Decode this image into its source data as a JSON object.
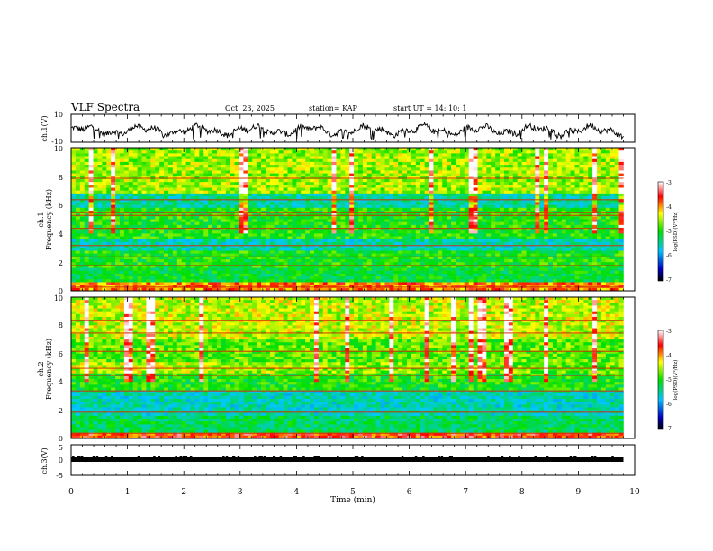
{
  "header": {
    "title": "VLF Spectra",
    "date": "Oct. 23, 2025",
    "station": "station= KAP",
    "start_time": "start  UT =   14: 10: 1"
  },
  "chart_data": [
    {
      "id": "ch1_waveform",
      "type": "line",
      "ylabel": "ch.1(V)",
      "ylim": [
        -10,
        10
      ],
      "y_ticks": [
        "10",
        "-10"
      ],
      "description_range": "signal oscillates roughly between -7 and 4 V over 0-9.8 min"
    },
    {
      "id": "ch1_spectrogram",
      "type": "heatmap",
      "ylabel": "ch.1",
      "ylabel2": "Frequency (kHz)",
      "ylim": [
        0,
        10
      ],
      "y_ticks": [
        "0",
        "2",
        "4",
        "6",
        "8",
        "10"
      ],
      "x_range_min": [
        0,
        9.8
      ],
      "colorbar": {
        "range": [
          -7,
          -3
        ],
        "ticks": [
          "-3",
          "-4",
          "-5",
          "-6",
          "-7"
        ],
        "label": "log(PSD)(V²/Hz)"
      }
    },
    {
      "id": "ch2_spectrogram",
      "type": "heatmap",
      "ylabel": "ch.2",
      "ylabel2": "Frequency (kHz)",
      "ylim": [
        0,
        10
      ],
      "y_ticks": [
        "0",
        "2",
        "4",
        "6",
        "8",
        "10"
      ],
      "x_range_min": [
        0,
        9.8
      ],
      "colorbar": {
        "range": [
          -7,
          -3
        ],
        "ticks": [
          "-3",
          "-4",
          "-5",
          "-6",
          "-7"
        ],
        "label": "log(PSD)(V²/Hz)"
      }
    },
    {
      "id": "ch3_trigger",
      "type": "line",
      "ylabel": "ch.3(V)",
      "ylim": [
        -5,
        5
      ],
      "y_ticks": [
        "5",
        "0",
        "-5"
      ],
      "level": 0
    }
  ],
  "x_axis": {
    "label": "Time (min)",
    "ticks": [
      "0",
      "1",
      "2",
      "3",
      "4",
      "5",
      "6",
      "7",
      "8",
      "9",
      "10"
    ],
    "range": [
      0,
      10
    ]
  },
  "colors": {
    "low": "#000080",
    "mid_low": "#00c8ff",
    "mid": "#00e000",
    "mid_high": "#ffff00",
    "high": "#ff0000",
    "top": "#ffffff"
  }
}
